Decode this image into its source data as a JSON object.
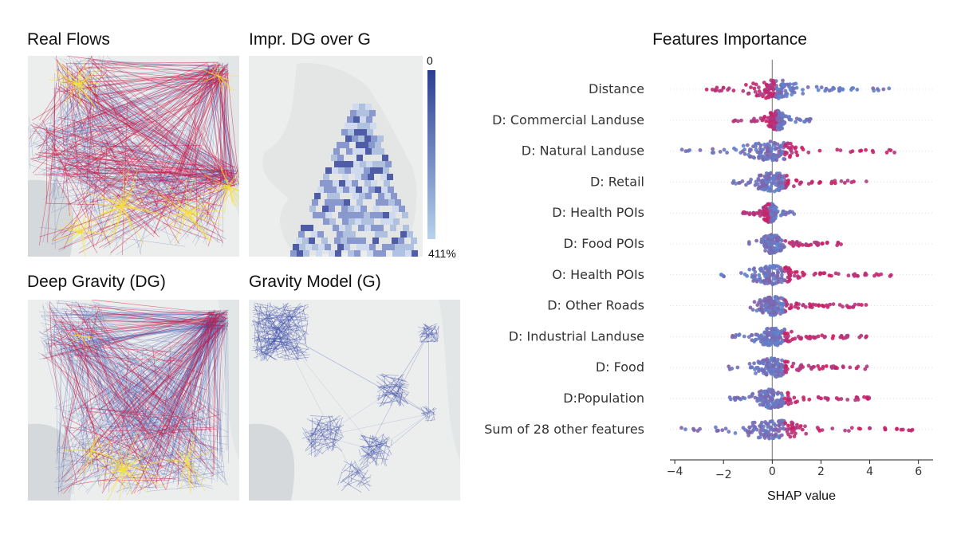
{
  "panels": {
    "real_flows": "Real Flows",
    "improvement": "Impr. DG over G",
    "deep_gravity": "Deep Gravity (DG)",
    "gravity_model": "Gravity Model (G)"
  },
  "colorbar": {
    "top_label": "0",
    "bottom_label": "411%",
    "color_high": "#2b3d92",
    "color_low": "#b8d2ee"
  },
  "colors": {
    "flow_blue": "#3a4aa8",
    "flow_red": "#d0173f",
    "flow_yellow": "#f7e03a",
    "map_bg": "#eceeed",
    "feature_low": "#5b85cf",
    "feature_high": "#d8145a"
  },
  "chart_data": {
    "type": "scatter",
    "title": "Features Importance",
    "xlabel": "SHAP value",
    "xlim": [
      -4.2,
      6.6
    ],
    "xticks": [
      -4,
      -2,
      0,
      2,
      4,
      6
    ],
    "features": [
      {
        "name": "Distance",
        "min": -3.1,
        "max": 4.8,
        "median": 0.1,
        "negative_high": true
      },
      {
        "name": "D: Commercial Landuse",
        "min": -1.6,
        "max": 1.6,
        "median": 0.2,
        "negative_high": true
      },
      {
        "name": "D: Natural Landuse",
        "min": -3.8,
        "max": 5.8,
        "median": 0.0,
        "negative_high": false
      },
      {
        "name": "D: Retail",
        "min": -1.8,
        "max": 3.9,
        "median": 0.0,
        "negative_high": false
      },
      {
        "name": "D: Health POIs",
        "min": -1.3,
        "max": 0.9,
        "median": -0.1,
        "negative_high": true
      },
      {
        "name": "D: Food POIs",
        "min": -1.0,
        "max": 2.9,
        "median": 0.0,
        "negative_high": false
      },
      {
        "name": "O: Health POIs",
        "min": -2.3,
        "max": 4.9,
        "median": 0.0,
        "negative_high": false
      },
      {
        "name": "D: Other Roads",
        "min": -1.1,
        "max": 3.9,
        "median": 0.0,
        "negative_high": false
      },
      {
        "name": "D: Industrial Landuse",
        "min": -1.8,
        "max": 3.9,
        "median": 0.0,
        "negative_high": false
      },
      {
        "name": "D: Food",
        "min": -1.8,
        "max": 3.9,
        "median": 0.0,
        "negative_high": false
      },
      {
        "name": "D:Population",
        "min": -1.8,
        "max": 4.0,
        "median": 0.0,
        "negative_high": false
      },
      {
        "name": "Sum of 28 other features",
        "min": -3.8,
        "max": 5.8,
        "median": 0.0,
        "negative_high": false
      }
    ]
  }
}
